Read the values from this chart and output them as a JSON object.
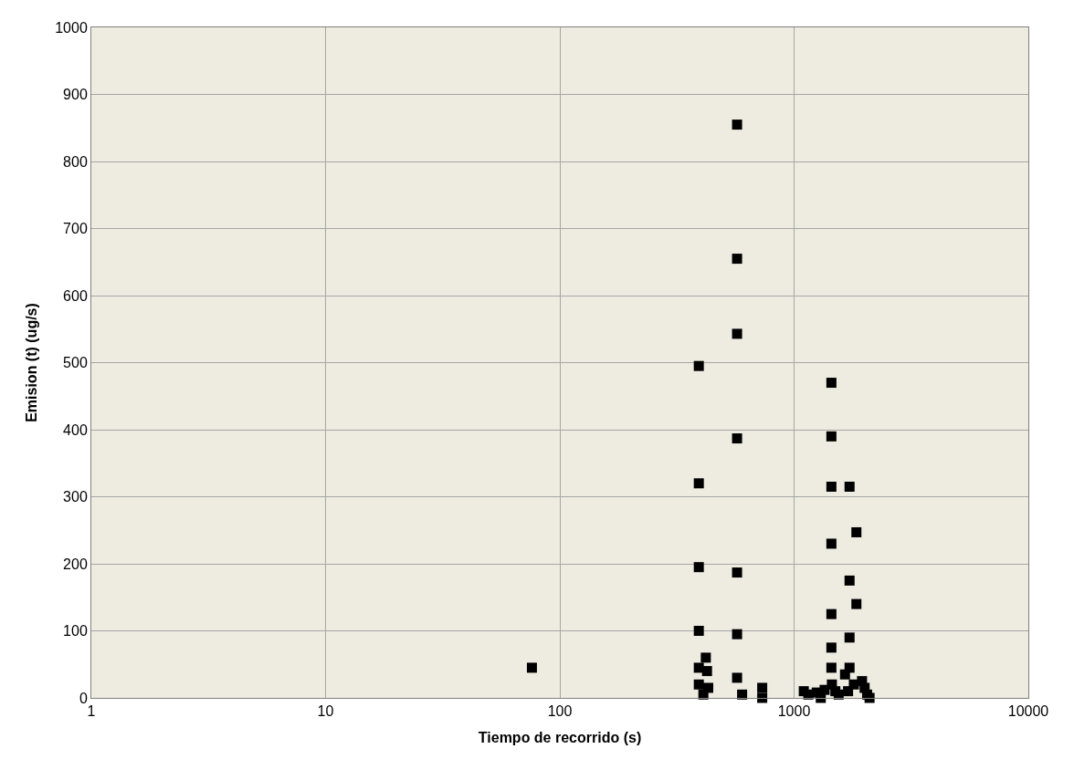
{
  "chart_data": {
    "type": "scatter",
    "xlabel": "Tiempo de recorrido (s)",
    "ylabel": "Emision (t) (ug/s)",
    "log": "x",
    "xlim": [
      1,
      10000
    ],
    "xticks": [
      1,
      10,
      100,
      1000,
      10000
    ],
    "ylim": [
      0,
      1000
    ],
    "yticks": [
      0,
      100,
      200,
      300,
      400,
      500,
      600,
      700,
      800,
      900,
      1000
    ],
    "grid": true,
    "marker": "square",
    "series": [
      {
        "color": "#000000",
        "x": [
          76,
          392,
          392,
          392,
          392,
          392,
          392,
          571,
          571,
          571,
          571,
          571,
          571,
          571,
          420,
          425,
          430,
          410,
          600,
          731,
          731,
          1100,
          1150,
          1250,
          1300,
          1350,
          1443,
          1443,
          1443,
          1443,
          1443,
          1443,
          1443,
          1450,
          1500,
          1550,
          1725,
          1725,
          1725,
          1725,
          1800,
          1845,
          1845,
          1950,
          2000,
          2050,
          2100,
          1700,
          1650
        ],
        "values": [
          45,
          495,
          320,
          195,
          100,
          45,
          20,
          855,
          655,
          543,
          387,
          187,
          95,
          30,
          60,
          40,
          15,
          5,
          5,
          15,
          0,
          10,
          5,
          8,
          0,
          12,
          470,
          390,
          315,
          230,
          125,
          75,
          45,
          20,
          10,
          5,
          315,
          175,
          90,
          45,
          20,
          247,
          140,
          25,
          15,
          5,
          0,
          10,
          35
        ]
      }
    ]
  }
}
